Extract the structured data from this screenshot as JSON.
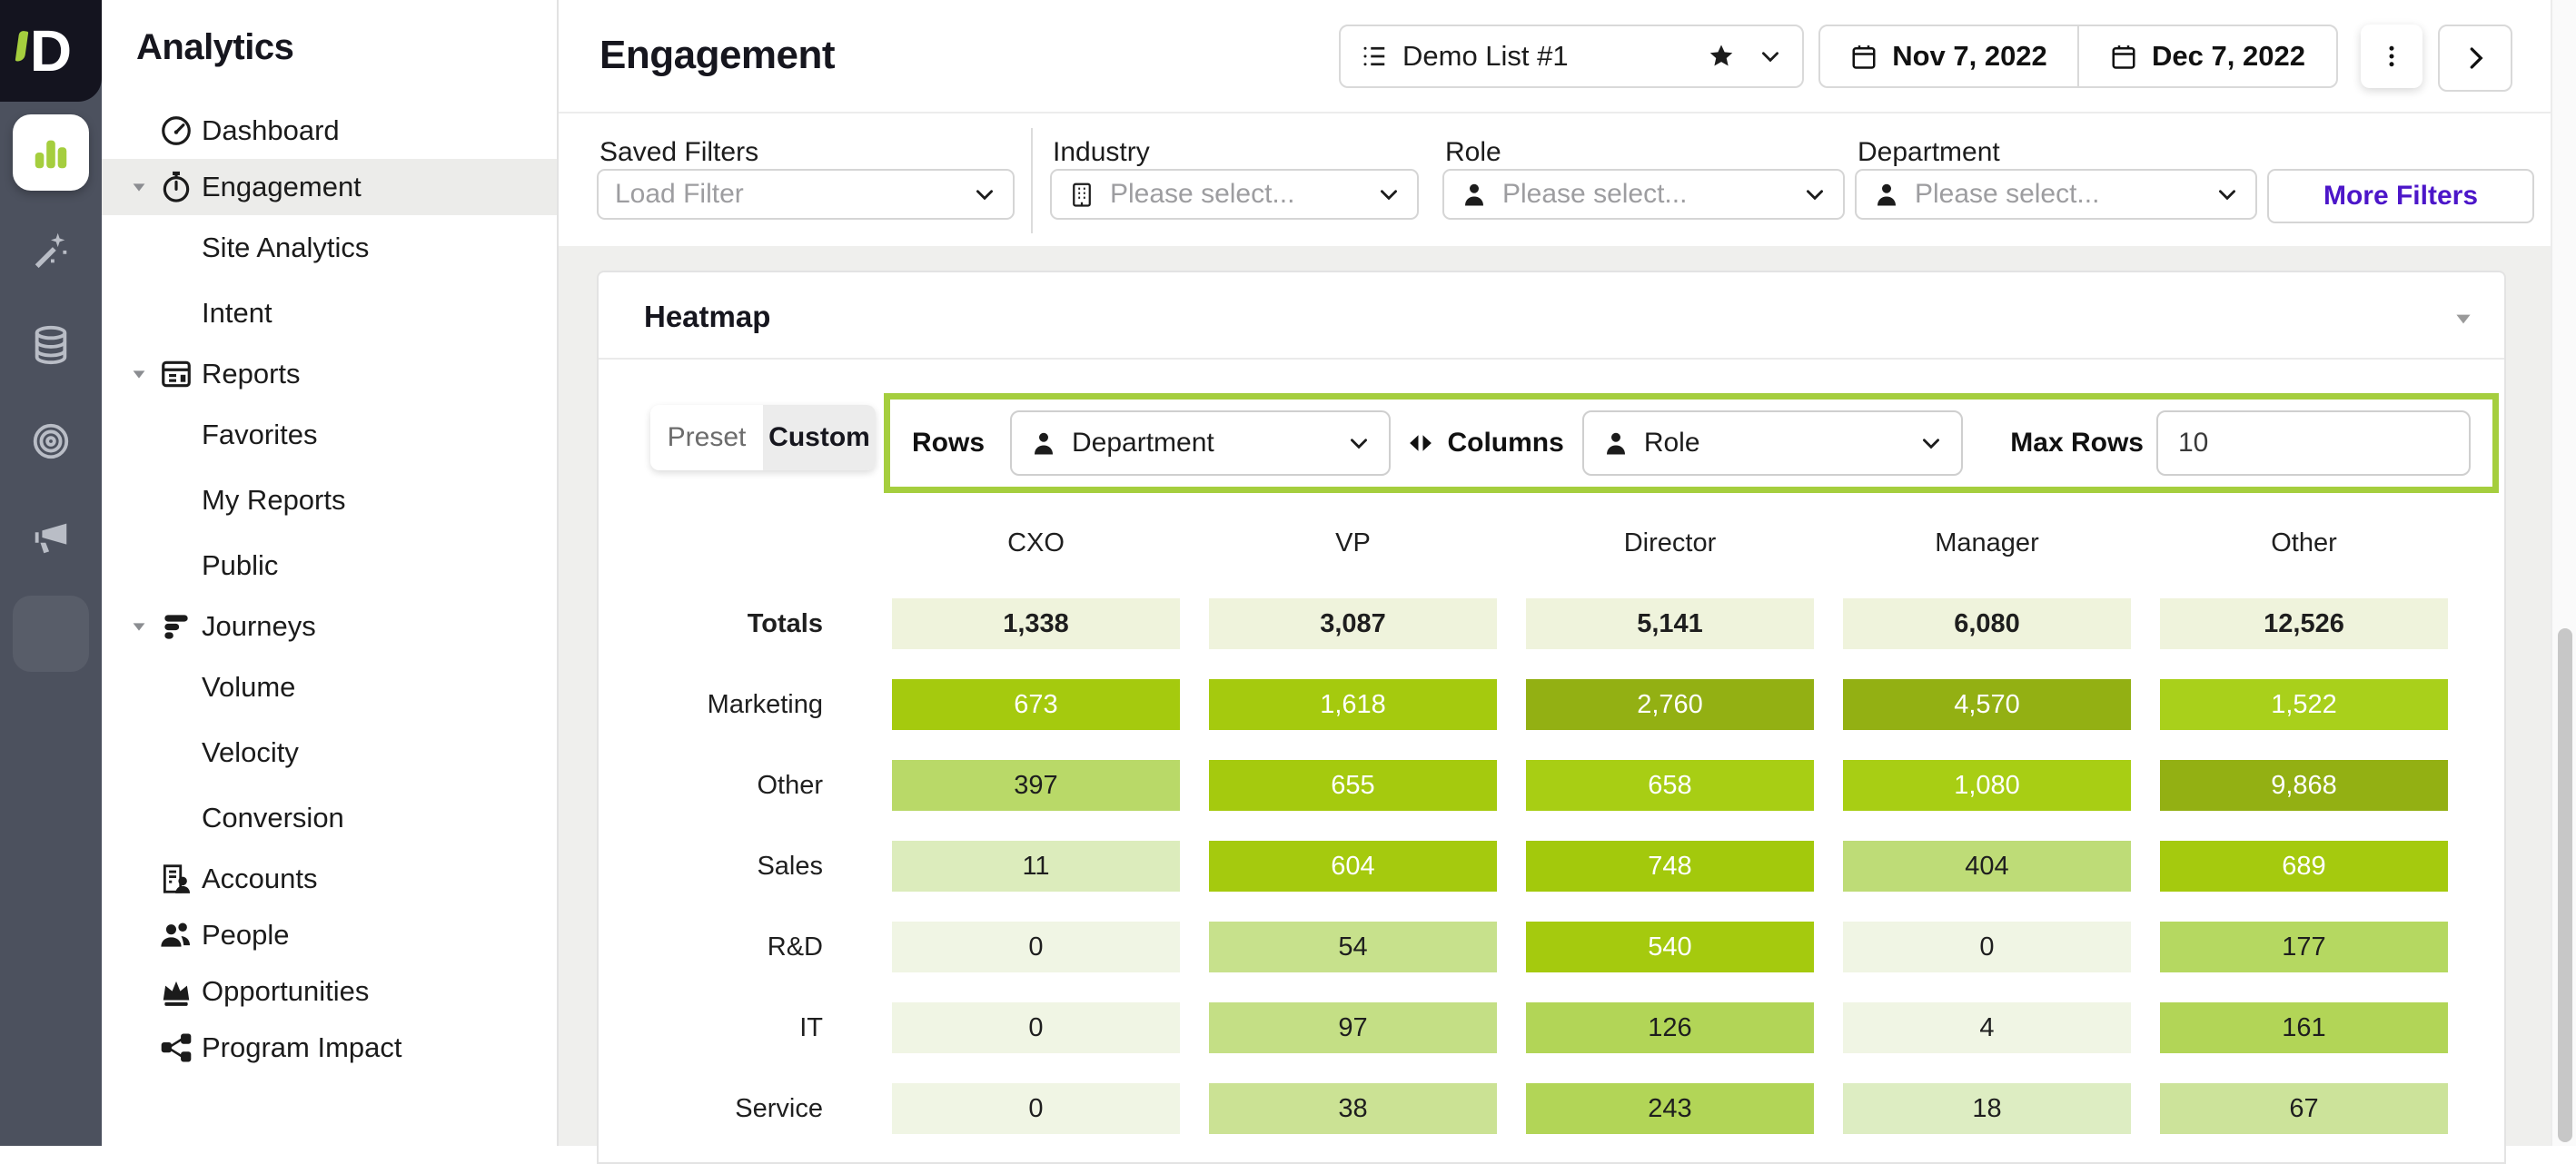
{
  "brand": {
    "title": "Analytics",
    "logo_letter": "D",
    "logo_bg": "#14141f",
    "accent_green": "#a5ce3e"
  },
  "rail": {
    "items": [
      {
        "icon": "bar-chart",
        "active": true
      },
      {
        "icon": "magic-wand",
        "active": false
      },
      {
        "icon": "database",
        "active": false
      },
      {
        "icon": "target",
        "active": false
      },
      {
        "icon": "megaphone",
        "active": false
      },
      {
        "icon": "ghost-tile",
        "active": false
      }
    ]
  },
  "sidebar": {
    "items": [
      {
        "label": "Dashboard",
        "icon": "gauge",
        "level": 1,
        "caret": false,
        "active": false
      },
      {
        "label": "Engagement",
        "icon": "stopwatch",
        "level": 1,
        "caret": true,
        "active": true
      },
      {
        "label": "Site Analytics",
        "icon": "",
        "level": 2,
        "caret": false,
        "active": false
      },
      {
        "label": "Intent",
        "icon": "",
        "level": 2,
        "caret": false,
        "active": false
      },
      {
        "label": "Reports",
        "icon": "report",
        "level": 1,
        "caret": true,
        "active": false
      },
      {
        "label": "Favorites",
        "icon": "",
        "level": 2,
        "caret": false,
        "active": false
      },
      {
        "label": "My Reports",
        "icon": "",
        "level": 2,
        "caret": false,
        "active": false
      },
      {
        "label": "Public",
        "icon": "",
        "level": 2,
        "caret": false,
        "active": false
      },
      {
        "label": "Journeys",
        "icon": "journeys",
        "level": 1,
        "caret": true,
        "active": false
      },
      {
        "label": "Volume",
        "icon": "",
        "level": 2,
        "caret": false,
        "active": false
      },
      {
        "label": "Velocity",
        "icon": "",
        "level": 2,
        "caret": false,
        "active": false
      },
      {
        "label": "Conversion",
        "icon": "",
        "level": 2,
        "caret": false,
        "active": false
      },
      {
        "label": "Accounts",
        "icon": "accounts",
        "level": 1,
        "caret": false,
        "active": false
      },
      {
        "label": "People",
        "icon": "people",
        "level": 1,
        "caret": false,
        "active": false
      },
      {
        "label": "Opportunities",
        "icon": "opportunities",
        "level": 1,
        "caret": false,
        "active": false
      },
      {
        "label": "Program Impact",
        "icon": "share",
        "level": 1,
        "caret": false,
        "active": false
      }
    ]
  },
  "header": {
    "title": "Engagement",
    "list_selector": {
      "label": "Demo List #1"
    },
    "date_start": "Nov 7, 2022",
    "date_end": "Dec 7, 2022"
  },
  "filters": {
    "saved_filters_label": "Saved Filters",
    "saved_filters_placeholder": "Load Filter",
    "industry_label": "Industry",
    "role_label": "Role",
    "department_label": "Department",
    "select_placeholder": "Please select...",
    "more_filters_label": "More Filters",
    "more_filters_color": "#4c16c9"
  },
  "heatmap": {
    "title": "Heatmap",
    "preset_label": "Preset",
    "custom_label": "Custom",
    "rows_label": "Rows",
    "rows_value": "Department",
    "columns_label": "Columns",
    "columns_value": "Role",
    "max_rows_label": "Max Rows",
    "max_rows_value": "10",
    "accent_border": "#a5ce3e"
  },
  "chart_data": {
    "type": "heatmap",
    "columns": [
      "CXO",
      "VP",
      "Director",
      "Manager",
      "Other"
    ],
    "rows": [
      {
        "label": "Totals",
        "bold": true,
        "values": [
          1338,
          3087,
          5141,
          6080,
          12526
        ],
        "cells": [
          {
            "text": "1,338",
            "bg": "#eff3dc",
            "fg": "#1e1e1e"
          },
          {
            "text": "3,087",
            "bg": "#eff3dc",
            "fg": "#1e1e1e"
          },
          {
            "text": "5,141",
            "bg": "#eff3dc",
            "fg": "#1e1e1e"
          },
          {
            "text": "6,080",
            "bg": "#eff3dc",
            "fg": "#1e1e1e"
          },
          {
            "text": "12,526",
            "bg": "#eff3dc",
            "fg": "#1e1e1e"
          }
        ]
      },
      {
        "label": "Marketing",
        "bold": false,
        "values": [
          673,
          1618,
          2760,
          4570,
          1522
        ],
        "cells": [
          {
            "text": "673",
            "bg": "#a5ca0e",
            "fg": "#ffffff"
          },
          {
            "text": "1,618",
            "bg": "#a5ca0e",
            "fg": "#ffffff"
          },
          {
            "text": "2,760",
            "bg": "#93b013",
            "fg": "#ffffff"
          },
          {
            "text": "4,570",
            "bg": "#93b013",
            "fg": "#ffffff"
          },
          {
            "text": "1,522",
            "bg": "#a9d01b",
            "fg": "#ffffff"
          }
        ]
      },
      {
        "label": "Other",
        "bold": false,
        "values": [
          397,
          655,
          658,
          1080,
          9868
        ],
        "cells": [
          {
            "text": "397",
            "bg": "#b9d968",
            "fg": "#1e1e1e"
          },
          {
            "text": "655",
            "bg": "#a5ca0e",
            "fg": "#ffffff"
          },
          {
            "text": "658",
            "bg": "#a8ce14",
            "fg": "#ffffff"
          },
          {
            "text": "1,080",
            "bg": "#a8ce14",
            "fg": "#ffffff"
          },
          {
            "text": "9,868",
            "bg": "#93b013",
            "fg": "#ffffff"
          }
        ]
      },
      {
        "label": "Sales",
        "bold": false,
        "values": [
          11,
          604,
          748,
          404,
          689
        ],
        "cells": [
          {
            "text": "11",
            "bg": "#dcecbc",
            "fg": "#1e1e1e"
          },
          {
            "text": "604",
            "bg": "#a5ca0e",
            "fg": "#ffffff"
          },
          {
            "text": "748",
            "bg": "#a3c90c",
            "fg": "#ffffff"
          },
          {
            "text": "404",
            "bg": "#bedc77",
            "fg": "#1e1e1e"
          },
          {
            "text": "689",
            "bg": "#a5ca0e",
            "fg": "#ffffff"
          }
        ]
      },
      {
        "label": "R&D",
        "bold": false,
        "values": [
          0,
          54,
          540,
          0,
          177
        ],
        "cells": [
          {
            "text": "0",
            "bg": "#f0f5e4",
            "fg": "#1e1e1e"
          },
          {
            "text": "54",
            "bg": "#c7e18c",
            "fg": "#1e1e1e"
          },
          {
            "text": "540",
            "bg": "#a5ca0e",
            "fg": "#ffffff"
          },
          {
            "text": "0",
            "bg": "#f0f5e4",
            "fg": "#1e1e1e"
          },
          {
            "text": "177",
            "bg": "#b5d861",
            "fg": "#1e1e1e"
          }
        ]
      },
      {
        "label": "IT",
        "bold": false,
        "values": [
          0,
          97,
          126,
          4,
          161
        ],
        "cells": [
          {
            "text": "0",
            "bg": "#f0f5e4",
            "fg": "#1e1e1e"
          },
          {
            "text": "97",
            "bg": "#c4df85",
            "fg": "#1e1e1e"
          },
          {
            "text": "126",
            "bg": "#b2d557",
            "fg": "#1e1e1e"
          },
          {
            "text": "4",
            "bg": "#f0f5e4",
            "fg": "#1e1e1e"
          },
          {
            "text": "161",
            "bg": "#b2d557",
            "fg": "#1e1e1e"
          }
        ]
      },
      {
        "label": "Service",
        "bold": false,
        "values": [
          0,
          38,
          243,
          18,
          67
        ],
        "cells": [
          {
            "text": "0",
            "bg": "#f0f5e4",
            "fg": "#1e1e1e"
          },
          {
            "text": "38",
            "bg": "#cbe294",
            "fg": "#1e1e1e"
          },
          {
            "text": "243",
            "bg": "#b2d557",
            "fg": "#1e1e1e"
          },
          {
            "text": "18",
            "bg": "#ddedc2",
            "fg": "#1e1e1e"
          },
          {
            "text": "67",
            "bg": "#cce39a",
            "fg": "#1e1e1e"
          }
        ]
      }
    ]
  }
}
